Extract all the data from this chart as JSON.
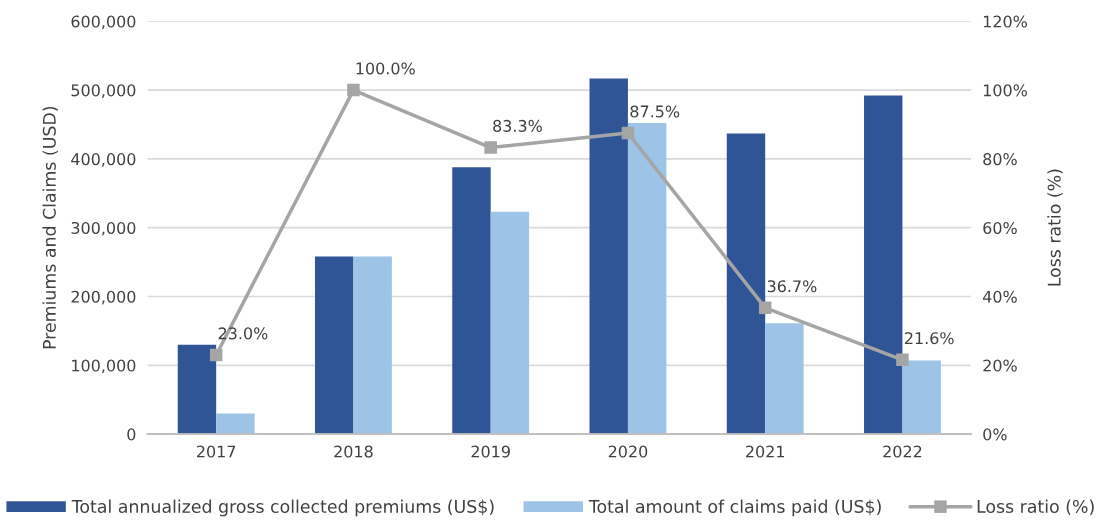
{
  "chart_data": {
    "type": "bar",
    "categories": [
      "2017",
      "2018",
      "2019",
      "2020",
      "2021",
      "2022"
    ],
    "ylabel": "Premiums and Claims (USD)",
    "y2label": "Loss ratio (%)",
    "ylim": [
      0,
      600000
    ],
    "yticks": [
      0,
      {
        "value": 100000,
        "label": "100,000"
      },
      {
        "value": 200000,
        "label": "200,000"
      },
      {
        "value": 300000,
        "label": "300,000"
      },
      {
        "value": 400000,
        "label": "400,000"
      },
      {
        "value": 500000,
        "label": "500,000"
      },
      {
        "value": 600000,
        "label": "600,000"
      }
    ],
    "y2lim": [
      0,
      120
    ],
    "y2ticks": [
      {
        "value": 0,
        "label": "0%"
      },
      {
        "value": 20,
        "label": "20%"
      },
      {
        "value": 40,
        "label": "40%"
      },
      {
        "value": 60,
        "label": "60%"
      },
      {
        "value": 80,
        "label": "80%"
      },
      {
        "value": 100,
        "label": "100%"
      },
      {
        "value": 120,
        "label": "120%"
      }
    ],
    "grid": "y",
    "legend": "bottom",
    "series": [
      {
        "name": "Total annualized gross collected premiums (US$)",
        "color": "#2f5597",
        "values": [
          130000,
          258000,
          388000,
          517000,
          437000,
          492000
        ]
      },
      {
        "name": "Total amount of claims paid (US$)",
        "color": "#9dc3e6",
        "values": [
          30000,
          258000,
          323000,
          452000,
          161000,
          107000
        ]
      },
      {
        "name": "Loss ratio (%)",
        "type": "line",
        "axis": "y2",
        "color": "#a5a5a5",
        "marker": "square",
        "line_style": "solid",
        "values": [
          23.0,
          100.0,
          83.3,
          87.5,
          36.7,
          21.6
        ],
        "value_labels": [
          "23.0%",
          "100.0%",
          "83.3%",
          "87.5%",
          "36.7%",
          "21.6%"
        ]
      }
    ]
  }
}
